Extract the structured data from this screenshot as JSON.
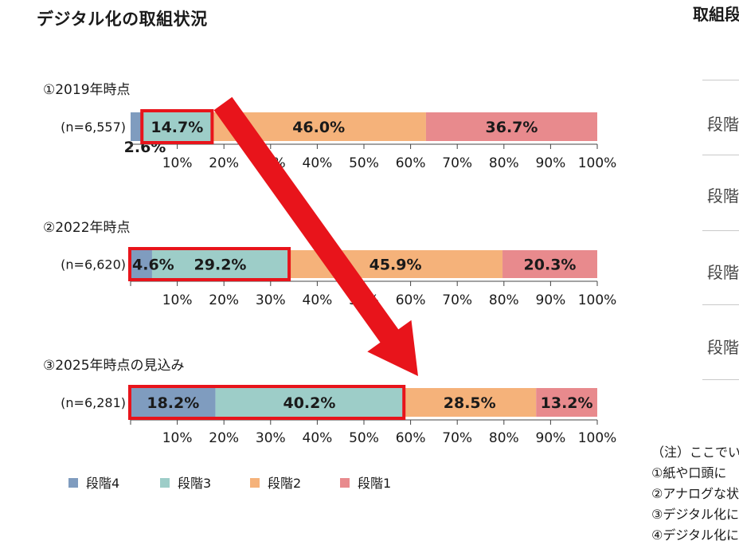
{
  "title": "デジタル化の取組状況",
  "right_panel": {
    "title": "取組段",
    "stage_labels": [
      "段階4",
      "段階3",
      "段階2",
      "段階1"
    ],
    "notes": [
      "（注）ここでい",
      "①紙や口頭に",
      "②アナログな状",
      "③デジタル化に",
      "④デジタル化に"
    ]
  },
  "colors": {
    "段階4": "#7f9cbf",
    "段階3": "#9dcdc8",
    "段階2": "#f5b27a",
    "段階1": "#e88a8d",
    "highlight": "#e8141b",
    "arrow": "#e8141b"
  },
  "chart_data": {
    "type": "bar",
    "orientation": "horizontal",
    "stacked": true,
    "series_names": [
      "段階4",
      "段階3",
      "段階2",
      "段階1"
    ],
    "x_ticks": [
      "10%",
      "20%",
      "30%",
      "40%",
      "50%",
      "60%",
      "70%",
      "80%",
      "90%",
      "100%"
    ],
    "xlim": [
      0,
      100
    ],
    "legend_position": "bottom",
    "panels": [
      {
        "heading": "①2019年時点",
        "n_label": "(n=6,557)",
        "values": [
          2.6,
          14.7,
          46.0,
          36.7
        ],
        "labels": [
          "2.6%",
          "14.7%",
          "46.0%",
          "36.7%"
        ],
        "highlight": [
          1,
          2
        ]
      },
      {
        "heading": "②2022年時点",
        "n_label": "(n=6,620)",
        "values": [
          4.6,
          29.2,
          45.9,
          20.3
        ],
        "labels": [
          "4.6%",
          "29.2%",
          "45.9%",
          "20.3%"
        ],
        "highlight": [
          0,
          2
        ]
      },
      {
        "heading": "③2025年時点の見込み",
        "n_label": "(n=6,281)",
        "values": [
          18.2,
          40.2,
          28.5,
          13.2
        ],
        "labels": [
          "18.2%",
          "40.2%",
          "28.5%",
          "13.2%"
        ],
        "highlight": [
          0,
          2
        ]
      }
    ]
  }
}
